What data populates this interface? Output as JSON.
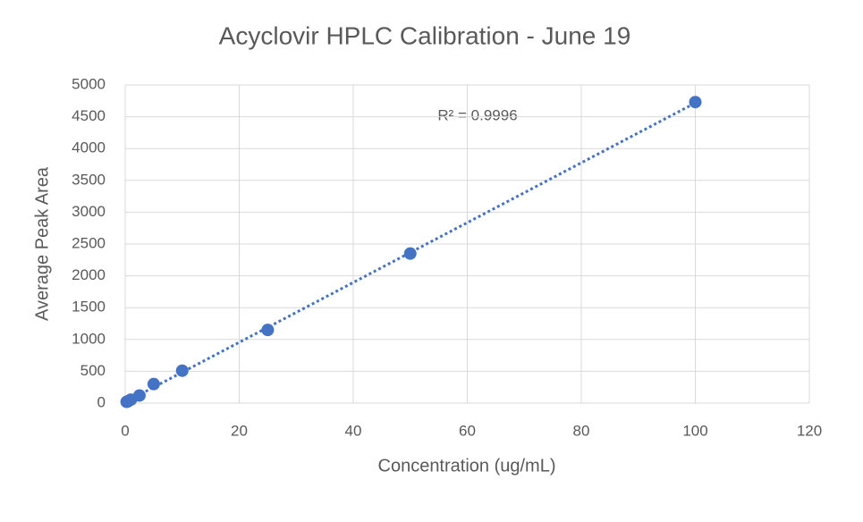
{
  "chart_data": {
    "type": "scatter",
    "title": "Acyclovir HPLC Calibration - June 19",
    "x_label": "Concentration (ug/mL)",
    "y_label": "Average Peak Area",
    "annotation": "R² = 0.9996",
    "x": [
      0.25,
      0.5,
      1,
      2.5,
      5,
      10,
      25,
      50,
      100
    ],
    "values": [
      20,
      30,
      55,
      120,
      300,
      510,
      1150,
      2350,
      4730
    ],
    "color": "#4472c4",
    "trendline": "linear",
    "xlim": [
      0,
      120
    ],
    "xticks": [
      0,
      20,
      40,
      60,
      80,
      100,
      120
    ],
    "ylim": [
      0,
      5000
    ],
    "yticks": [
      0,
      500,
      1000,
      1500,
      2000,
      2500,
      3000,
      3500,
      4000,
      4500,
      5000
    ],
    "grid": true
  }
}
